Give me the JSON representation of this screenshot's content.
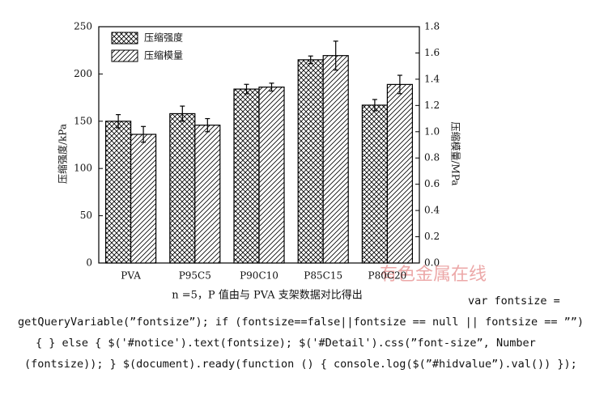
{
  "chart_data": {
    "type": "bar",
    "categories": [
      "PVA",
      "P95C5",
      "P90C10",
      "P85C15",
      "P80C20"
    ],
    "series": [
      {
        "name": "压缩强度",
        "color": "#000000",
        "hatch": "cross",
        "values": [
          150,
          158,
          184,
          215,
          167
        ],
        "errors": [
          7,
          8,
          5,
          4,
          6
        ]
      },
      {
        "name": "压缩模量",
        "color": "#000000",
        "hatch": "diagonal",
        "axis": "y2",
        "values": [
          0.98,
          1.05,
          1.34,
          1.58,
          1.36
        ],
        "errors": [
          0.06,
          0.05,
          0.03,
          0.11,
          0.07
        ]
      }
    ],
    "ylabel": "压缩强度/kPa",
    "y2label": "压缩模量/MPa",
    "ylim": [
      0,
      250
    ],
    "yticks": [
      0,
      50,
      100,
      150,
      200,
      250
    ],
    "y2lim": [
      0,
      1.8
    ],
    "y2ticks": [
      {
        "value": 0,
        "label": "0.0"
      },
      0.2,
      0.4,
      0.6,
      0.8,
      {
        "value": 1,
        "label": "1.0"
      },
      1.2,
      1.4,
      1.6,
      1.8
    ],
    "legend": "upper left",
    "caption": "n =5，P 值由与 PVA 支架数据对比得出",
    "watermark": "有色金属在线"
  },
  "code_text": [
    "var fontsize =",
    "getQueryVariable(”fontsize”); if (fontsize==false||fontsize == null || fontsize == ””)",
    "{ } else { $('#notice').text(fontsize); $('#Detail').css(”font-size”, Number",
    "(fontsize)); } $(document).ready(function () { console.log($(”#hidvalue”).val()) });"
  ]
}
